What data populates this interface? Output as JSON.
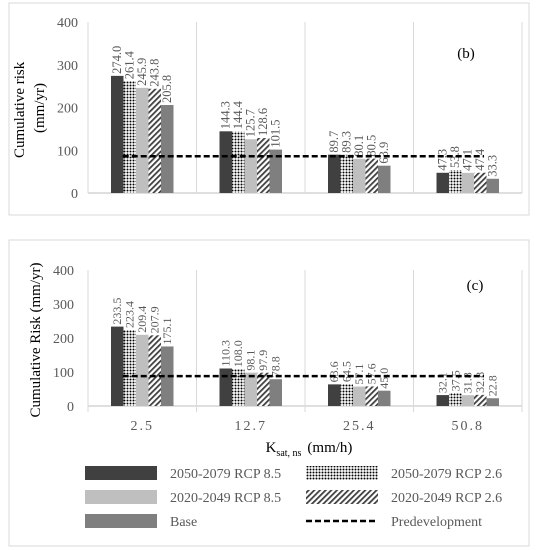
{
  "chart_data": [
    {
      "type": "bar",
      "panel_label": "(b)",
      "title": "",
      "ylabel": "Cumulative risk\n(mm/yr)",
      "xlabel": "",
      "ylim": [
        0,
        400
      ],
      "yticks": [
        0,
        100,
        200,
        300,
        400
      ],
      "categories": [
        "",
        "",
        "",
        ""
      ],
      "series": [
        {
          "name": "2050-2079 RCP 8.5",
          "values": [
            274.0,
            144.3,
            89.7,
            47.3
          ]
        },
        {
          "name": "2050-2079 RCP 2.6",
          "values": [
            261.4,
            144.4,
            89.3,
            53.8
          ]
        },
        {
          "name": "2020-2049 RCP 8.5",
          "values": [
            245.9,
            125.7,
            80.1,
            47.1
          ]
        },
        {
          "name": "2020-2049 RCP 2.6",
          "values": [
            243.8,
            128.6,
            80.5,
            47.4
          ]
        },
        {
          "name": "Base",
          "values": [
            205.8,
            101.5,
            63.9,
            33.3
          ]
        }
      ],
      "labels": [
        [
          "274.0",
          "261.4",
          "245.9",
          "243.8",
          "205.8"
        ],
        [
          "144.3",
          "144.4",
          "125.7",
          "128.6",
          "101.5"
        ],
        [
          "89.7",
          "89.3",
          "80.1",
          "80.5",
          "63.9"
        ],
        [
          "47.3",
          "53.8",
          "47.1",
          "47.4",
          "33.3"
        ]
      ],
      "predevelopment": 86,
      "grid": false
    },
    {
      "type": "bar",
      "panel_label": "(c)",
      "title": "",
      "ylabel": "Cumulative Risk (mm/yr)",
      "xlabel": "K",
      "xlabel_sub": "sat, ns",
      "xlabel_unit": "(mm/h)",
      "ylim": [
        0,
        400
      ],
      "yticks": [
        0,
        100,
        200,
        300,
        400
      ],
      "categories": [
        "2.5",
        "12.7",
        "25.4",
        "50.8"
      ],
      "series": [
        {
          "name": "2050-2079 RCP 8.5",
          "values": [
            233.5,
            110.3,
            63.6,
            32.1
          ]
        },
        {
          "name": "2050-2079 RCP 2.6",
          "values": [
            223.4,
            108.0,
            64.5,
            37.5
          ]
        },
        {
          "name": "2020-2049 RCP 8.5",
          "values": [
            209.4,
            98.1,
            57.1,
            31.8
          ]
        },
        {
          "name": "2020-2049 RCP 2.6",
          "values": [
            207.9,
            97.9,
            57.6,
            32.8
          ]
        },
        {
          "name": "Base",
          "values": [
            175.1,
            78.8,
            45.0,
            22.8
          ]
        }
      ],
      "labels": [
        [
          "233.5",
          "223.4",
          "209.4",
          "207.9",
          "175.1"
        ],
        [
          "110.3",
          "108.0",
          "98.1",
          "97.9",
          "78.8"
        ],
        [
          "63.6",
          "64.5",
          "57.1",
          "57.6",
          "45.0"
        ],
        [
          "32.1",
          "37.5",
          "31.8",
          "32.8",
          "22.8"
        ]
      ],
      "predevelopment": 88,
      "grid": false
    }
  ],
  "legend": {
    "items": [
      {
        "label": "2050-2079 RCP 8.5",
        "pattern": "dark"
      },
      {
        "label": "2050-2079 RCP 2.6",
        "pattern": "dots"
      },
      {
        "label": "2020-2049 RCP 8.5",
        "pattern": "light"
      },
      {
        "label": "2020-2049 RCP 2.6",
        "pattern": "hatch"
      },
      {
        "label": "Base",
        "pattern": "medium"
      },
      {
        "label": "Predevelopment",
        "pattern": "dashed-line"
      }
    ]
  },
  "colors": {
    "dark": "#404040",
    "light": "#bfbfbf",
    "medium": "#7f7f7f",
    "axis": "#bfbfbf",
    "text": "#595959",
    "line": "#000000"
  }
}
